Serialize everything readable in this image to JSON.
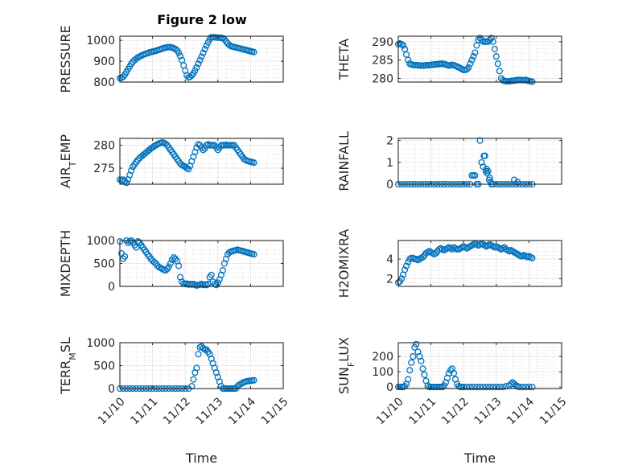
{
  "title": "Figure 2 low",
  "marker_color": "#0072BD",
  "x_ticks": [
    "11/10",
    "11/11",
    "11/12",
    "11/13",
    "11/14",
    "11/15"
  ],
  "x_label": "Time",
  "chart_data": [
    {
      "type": "scatter",
      "ylabel": "PRESSURE",
      "ylabel_sub": "",
      "ylabel_tail": "",
      "xlim": [
        0,
        5
      ],
      "ylim": [
        800,
        1020
      ],
      "yticks": [
        800,
        900,
        1000
      ],
      "x": [
        0.0,
        0.05,
        0.1,
        0.15,
        0.2,
        0.25,
        0.3,
        0.35,
        0.4,
        0.45,
        0.5,
        0.55,
        0.6,
        0.65,
        0.7,
        0.75,
        0.8,
        0.85,
        0.9,
        0.95,
        1.0,
        1.05,
        1.1,
        1.15,
        1.2,
        1.25,
        1.3,
        1.35,
        1.4,
        1.45,
        1.5,
        1.55,
        1.6,
        1.65,
        1.7,
        1.75,
        1.8,
        1.85,
        1.9,
        1.95,
        2.0,
        2.05,
        2.1,
        2.15,
        2.2,
        2.25,
        2.3,
        2.35,
        2.4,
        2.45,
        2.5,
        2.55,
        2.6,
        2.65,
        2.7,
        2.75,
        2.8,
        2.85,
        2.9,
        2.95,
        3.0,
        3.05,
        3.1,
        3.15,
        3.2,
        3.25,
        3.3,
        3.35,
        3.4,
        3.45,
        3.5,
        3.55,
        3.6,
        3.65,
        3.7,
        3.75,
        3.8,
        3.85,
        3.9,
        3.95,
        4.0,
        4.05,
        4.1
      ],
      "y": [
        818,
        820,
        825,
        835,
        848,
        862,
        875,
        888,
        898,
        905,
        912,
        918,
        922,
        926,
        930,
        933,
        936,
        939,
        942,
        944,
        946,
        948,
        950,
        952,
        955,
        958,
        961,
        963,
        965,
        967,
        968,
        967,
        965,
        962,
        958,
        952,
        940,
        925,
        905,
        880,
        855,
        832,
        822,
        825,
        832,
        842,
        855,
        870,
        888,
        905,
        922,
        940,
        958,
        975,
        990,
        1005,
        1015,
        1015,
        1015,
        1014,
        1013,
        1013,
        1012,
        1010,
        1005,
        995,
        985,
        978,
        972,
        970,
        968,
        966,
        964,
        962,
        960,
        958,
        956,
        954,
        952,
        950,
        948,
        946,
        944
      ]
    },
    {
      "type": "scatter",
      "ylabel": "THETA",
      "ylabel_sub": "",
      "ylabel_tail": "",
      "xlim": [
        0,
        5
      ],
      "ylim": [
        279,
        291.5
      ],
      "yticks": [
        280,
        285,
        290
      ],
      "x": [
        0.0,
        0.05,
        0.1,
        0.15,
        0.2,
        0.25,
        0.3,
        0.35,
        0.4,
        0.45,
        0.5,
        0.55,
        0.6,
        0.65,
        0.7,
        0.75,
        0.8,
        0.85,
        0.9,
        0.95,
        1.0,
        1.05,
        1.1,
        1.15,
        1.2,
        1.25,
        1.3,
        1.35,
        1.4,
        1.45,
        1.5,
        1.55,
        1.6,
        1.65,
        1.7,
        1.75,
        1.8,
        1.85,
        1.9,
        1.95,
        2.0,
        2.05,
        2.1,
        2.15,
        2.2,
        2.25,
        2.3,
        2.35,
        2.4,
        2.45,
        2.5,
        2.55,
        2.6,
        2.65,
        2.7,
        2.75,
        2.8,
        2.85,
        2.9,
        2.95,
        3.0,
        3.05,
        3.1,
        3.15,
        3.2,
        3.25,
        3.3,
        3.35,
        3.4,
        3.45,
        3.5,
        3.55,
        3.6,
        3.65,
        3.7,
        3.75,
        3.8,
        3.85,
        3.9,
        3.95,
        4.0,
        4.05,
        4.1
      ],
      "y": [
        289.3,
        289.5,
        289.3,
        289,
        288,
        286.5,
        285,
        284,
        283.8,
        283.7,
        283.6,
        283.6,
        283.6,
        283.5,
        283.5,
        283.5,
        283.5,
        283.6,
        283.6,
        283.6,
        283.7,
        283.7,
        283.8,
        283.8,
        283.9,
        283.9,
        284,
        284,
        283.9,
        283.8,
        283.6,
        283.5,
        283.6,
        283.7,
        283.6,
        283.4,
        283.2,
        283,
        282.8,
        282.5,
        282.3,
        282.3,
        282.5,
        283,
        284,
        285,
        286,
        287,
        289,
        290.5,
        291,
        290.5,
        290,
        290,
        290,
        290,
        290.5,
        291,
        290,
        288,
        286,
        284,
        282,
        280,
        279.5,
        279.3,
        279.2,
        279.2,
        279.2,
        279.3,
        279.3,
        279.4,
        279.5,
        279.5,
        279.6,
        279.6,
        279.5,
        279.5,
        279.6,
        279.4,
        279.3,
        279.2,
        279.1
      ]
    },
    {
      "type": "scatter",
      "ylabel": "AIR",
      "ylabel_sub": "T",
      "ylabel_tail": "EMP",
      "xlim": [
        0,
        5
      ],
      "ylim": [
        271.5,
        281.5
      ],
      "yticks": [
        275,
        280
      ],
      "x": [
        0.0,
        0.05,
        0.1,
        0.15,
        0.2,
        0.25,
        0.3,
        0.35,
        0.4,
        0.45,
        0.5,
        0.55,
        0.6,
        0.65,
        0.7,
        0.75,
        0.8,
        0.85,
        0.9,
        0.95,
        1.0,
        1.05,
        1.1,
        1.15,
        1.2,
        1.25,
        1.3,
        1.35,
        1.4,
        1.45,
        1.5,
        1.55,
        1.6,
        1.65,
        1.7,
        1.75,
        1.8,
        1.85,
        1.9,
        1.95,
        2.0,
        2.05,
        2.1,
        2.15,
        2.2,
        2.25,
        2.3,
        2.35,
        2.4,
        2.45,
        2.5,
        2.55,
        2.6,
        2.65,
        2.7,
        2.75,
        2.8,
        2.85,
        2.9,
        2.95,
        3.0,
        3.05,
        3.1,
        3.15,
        3.2,
        3.25,
        3.3,
        3.35,
        3.4,
        3.45,
        3.5,
        3.55,
        3.6,
        3.65,
        3.7,
        3.75,
        3.8,
        3.85,
        3.9,
        3.95,
        4.0,
        4.05,
        4.1
      ],
      "y": [
        272.5,
        272.3,
        272.5,
        272.2,
        271.8,
        272.5,
        273.5,
        274.5,
        275.3,
        275.8,
        276.3,
        276.8,
        277.2,
        277.5,
        277.8,
        278.1,
        278.4,
        278.7,
        279,
        279.3,
        279.5,
        279.8,
        280,
        280.2,
        280.4,
        280.5,
        280.6,
        280.5,
        280.3,
        280,
        279.5,
        279,
        278.5,
        278,
        277.5,
        277,
        276.5,
        276,
        275.7,
        275.5,
        275.3,
        275,
        274.8,
        275.5,
        276.5,
        277.5,
        278.5,
        279.5,
        280.2,
        280,
        279.5,
        279,
        279.3,
        280,
        280.2,
        280,
        280,
        280,
        280,
        279.5,
        279,
        279.5,
        280,
        280,
        280,
        280.1,
        280,
        280,
        280,
        280,
        280,
        279.5,
        279,
        278.5,
        278,
        277.5,
        277,
        276.8,
        276.6,
        276.5,
        276.4,
        276.3,
        276.2
      ]
    },
    {
      "type": "scatter",
      "ylabel": "RAINFALL",
      "ylabel_sub": "",
      "ylabel_tail": "",
      "xlim": [
        0,
        5
      ],
      "ylim": [
        0,
        2.1
      ],
      "yticks": [
        0,
        1,
        2
      ],
      "x": [
        0.0,
        0.1,
        0.2,
        0.3,
        0.4,
        0.5,
        0.6,
        0.7,
        0.8,
        0.9,
        1.0,
        1.1,
        1.2,
        1.3,
        1.4,
        1.5,
        1.6,
        1.7,
        1.8,
        1.9,
        2.0,
        2.1,
        2.2,
        2.25,
        2.3,
        2.35,
        2.4,
        2.45,
        2.5,
        2.55,
        2.6,
        2.62,
        2.65,
        2.68,
        2.7,
        2.72,
        2.75,
        2.78,
        2.8,
        2.83,
        2.85,
        2.9,
        3.0,
        3.1,
        3.2,
        3.3,
        3.4,
        3.5,
        3.55,
        3.6,
        3.65,
        3.7,
        3.8,
        3.9,
        4.0,
        4.1
      ],
      "y": [
        0,
        0,
        0,
        0,
        0,
        0,
        0,
        0,
        0,
        0,
        0,
        0,
        0,
        0,
        0,
        0,
        0,
        0,
        0,
        0,
        0,
        0,
        0,
        0.4,
        0.4,
        0.4,
        0,
        0,
        2,
        1,
        0.8,
        1.3,
        1.3,
        0.6,
        0.7,
        0.5,
        0.6,
        0.2,
        0.3,
        0.1,
        0,
        0,
        0,
        0,
        0,
        0,
        0,
        0,
        0.2,
        0,
        0.1,
        0,
        0,
        0,
        0,
        0
      ]
    },
    {
      "type": "scatter",
      "ylabel": "MIXDEPTH",
      "ylabel_sub": "",
      "ylabel_tail": "",
      "xlim": [
        0,
        5
      ],
      "ylim": [
        0,
        1000
      ],
      "yticks": [
        0,
        500,
        1000
      ],
      "x": [
        0.0,
        0.05,
        0.1,
        0.15,
        0.2,
        0.25,
        0.3,
        0.35,
        0.4,
        0.45,
        0.5,
        0.55,
        0.6,
        0.65,
        0.7,
        0.75,
        0.8,
        0.85,
        0.9,
        0.95,
        1.0,
        1.05,
        1.1,
        1.15,
        1.2,
        1.25,
        1.3,
        1.35,
        1.4,
        1.45,
        1.5,
        1.55,
        1.6,
        1.65,
        1.7,
        1.75,
        1.8,
        1.85,
        1.9,
        1.95,
        2.0,
        2.05,
        2.1,
        2.15,
        2.2,
        2.25,
        2.3,
        2.35,
        2.4,
        2.45,
        2.5,
        2.55,
        2.6,
        2.65,
        2.7,
        2.75,
        2.8,
        2.85,
        2.9,
        2.95,
        3.0,
        3.05,
        3.1,
        3.15,
        3.2,
        3.25,
        3.3,
        3.35,
        3.4,
        3.45,
        3.5,
        3.55,
        3.6,
        3.65,
        3.7,
        3.75,
        3.8,
        3.85,
        3.9,
        3.95,
        4.0,
        4.05,
        4.1
      ],
      "y": [
        980,
        720,
        600,
        650,
        1000,
        950,
        980,
        1000,
        960,
        900,
        850,
        980,
        960,
        900,
        850,
        800,
        750,
        700,
        650,
        600,
        560,
        530,
        500,
        450,
        420,
        400,
        380,
        360,
        350,
        380,
        430,
        500,
        580,
        630,
        600,
        550,
        450,
        200,
        100,
        60,
        50,
        60,
        40,
        50,
        40,
        50,
        30,
        20,
        30,
        40,
        50,
        30,
        40,
        30,
        50,
        200,
        250,
        100,
        50,
        30,
        80,
        150,
        250,
        350,
        500,
        600,
        700,
        740,
        760,
        770,
        780,
        790,
        800,
        790,
        780,
        770,
        760,
        750,
        740,
        730,
        720,
        710,
        700
      ]
    },
    {
      "type": "scatter",
      "ylabel": "H2OMIXRA",
      "ylabel_sub": "",
      "ylabel_tail": "",
      "xlim": [
        0,
        5
      ],
      "ylim": [
        1.2,
        5.9
      ],
      "yticks": [
        2,
        4
      ],
      "x": [
        0.0,
        0.05,
        0.1,
        0.15,
        0.2,
        0.25,
        0.3,
        0.35,
        0.4,
        0.45,
        0.5,
        0.55,
        0.6,
        0.65,
        0.7,
        0.75,
        0.8,
        0.85,
        0.9,
        0.95,
        1.0,
        1.05,
        1.1,
        1.15,
        1.2,
        1.25,
        1.3,
        1.35,
        1.4,
        1.45,
        1.5,
        1.55,
        1.6,
        1.65,
        1.7,
        1.75,
        1.8,
        1.85,
        1.9,
        1.95,
        2.0,
        2.05,
        2.1,
        2.15,
        2.2,
        2.25,
        2.3,
        2.35,
        2.4,
        2.45,
        2.5,
        2.55,
        2.6,
        2.65,
        2.7,
        2.75,
        2.8,
        2.85,
        2.9,
        2.95,
        3.0,
        3.05,
        3.1,
        3.15,
        3.2,
        3.25,
        3.3,
        3.35,
        3.4,
        3.45,
        3.5,
        3.55,
        3.6,
        3.65,
        3.7,
        3.75,
        3.8,
        3.85,
        3.9,
        3.95,
        4.0,
        4.05,
        4.1
      ],
      "y": [
        1.6,
        1.7,
        2.0,
        2.4,
        2.9,
        3.3,
        3.7,
        4.0,
        4.1,
        4.1,
        4.0,
        4.0,
        3.9,
        4.0,
        4.1,
        4.2,
        4.4,
        4.6,
        4.7,
        4.8,
        4.7,
        4.6,
        4.5,
        4.6,
        4.8,
        5.0,
        5.1,
        5.0,
        4.9,
        5.0,
        5.1,
        5.2,
        5.1,
        5.0,
        5.2,
        5.1,
        5.0,
        5.0,
        5.1,
        5.2,
        5.3,
        5.2,
        5.1,
        5.2,
        5.3,
        5.4,
        5.5,
        5.6,
        5.5,
        5.4,
        5.5,
        5.6,
        5.5,
        5.4,
        5.3,
        5.4,
        5.5,
        5.4,
        5.3,
        5.2,
        5.3,
        5.2,
        5.1,
        5.0,
        5.1,
        5.2,
        5.0,
        4.9,
        4.8,
        4.9,
        4.8,
        4.7,
        4.6,
        4.5,
        4.4,
        4.3,
        4.3,
        4.4,
        4.3,
        4.2,
        4.3,
        4.2,
        4.1
      ]
    },
    {
      "type": "scatter",
      "ylabel": "TERR",
      "ylabel_sub": "M",
      "ylabel_tail": "SL",
      "xlim": [
        0,
        5
      ],
      "ylim": [
        0,
        1000
      ],
      "yticks": [
        0,
        500,
        1000
      ],
      "x": [
        0.0,
        0.1,
        0.2,
        0.3,
        0.4,
        0.5,
        0.6,
        0.7,
        0.8,
        0.9,
        1.0,
        1.1,
        1.2,
        1.3,
        1.4,
        1.5,
        1.6,
        1.7,
        1.8,
        1.9,
        2.0,
        2.1,
        2.2,
        2.25,
        2.3,
        2.35,
        2.4,
        2.45,
        2.5,
        2.55,
        2.6,
        2.65,
        2.7,
        2.75,
        2.8,
        2.85,
        2.9,
        2.95,
        3.0,
        3.05,
        3.1,
        3.15,
        3.2,
        3.25,
        3.3,
        3.35,
        3.4,
        3.45,
        3.5,
        3.55,
        3.6,
        3.65,
        3.7,
        3.75,
        3.8,
        3.85,
        3.9,
        3.95,
        4.0,
        4.05,
        4.1
      ],
      "y": [
        0,
        0,
        0,
        0,
        0,
        0,
        0,
        0,
        0,
        0,
        0,
        0,
        0,
        0,
        0,
        0,
        0,
        0,
        0,
        0,
        0,
        0,
        50,
        200,
        350,
        450,
        750,
        900,
        920,
        880,
        850,
        850,
        800,
        750,
        650,
        550,
        450,
        350,
        250,
        150,
        50,
        0,
        0,
        0,
        0,
        0,
        0,
        0,
        0,
        0,
        50,
        80,
        100,
        120,
        140,
        150,
        160,
        165,
        170,
        175,
        180
      ]
    },
    {
      "type": "scatter",
      "ylabel": "SUN",
      "ylabel_sub": "F",
      "ylabel_tail": "LUX",
      "xlim": [
        0,
        5
      ],
      "ylim": [
        -10,
        290
      ],
      "yticks": [
        0,
        100,
        200
      ],
      "x": [
        0.0,
        0.05,
        0.1,
        0.15,
        0.2,
        0.25,
        0.3,
        0.35,
        0.4,
        0.45,
        0.5,
        0.55,
        0.6,
        0.65,
        0.7,
        0.75,
        0.8,
        0.85,
        0.9,
        0.95,
        1.0,
        1.05,
        1.1,
        1.15,
        1.2,
        1.25,
        1.3,
        1.35,
        1.4,
        1.45,
        1.5,
        1.55,
        1.6,
        1.65,
        1.7,
        1.75,
        1.8,
        1.85,
        1.9,
        1.95,
        2.0,
        2.1,
        2.2,
        2.3,
        2.4,
        2.5,
        2.6,
        2.7,
        2.8,
        2.9,
        3.0,
        3.1,
        3.2,
        3.3,
        3.4,
        3.45,
        3.5,
        3.55,
        3.6,
        3.65,
        3.7,
        3.8,
        3.9,
        4.0,
        4.1
      ],
      "y": [
        0,
        0,
        0,
        0,
        5,
        20,
        50,
        110,
        160,
        200,
        260,
        280,
        230,
        200,
        170,
        120,
        80,
        40,
        10,
        0,
        0,
        0,
        0,
        0,
        0,
        0,
        0,
        0,
        10,
        30,
        60,
        90,
        110,
        120,
        90,
        50,
        20,
        5,
        0,
        0,
        0,
        0,
        0,
        0,
        0,
        0,
        0,
        0,
        0,
        0,
        0,
        0,
        0,
        5,
        10,
        20,
        30,
        20,
        10,
        5,
        0,
        0,
        0,
        0,
        0
      ]
    }
  ]
}
